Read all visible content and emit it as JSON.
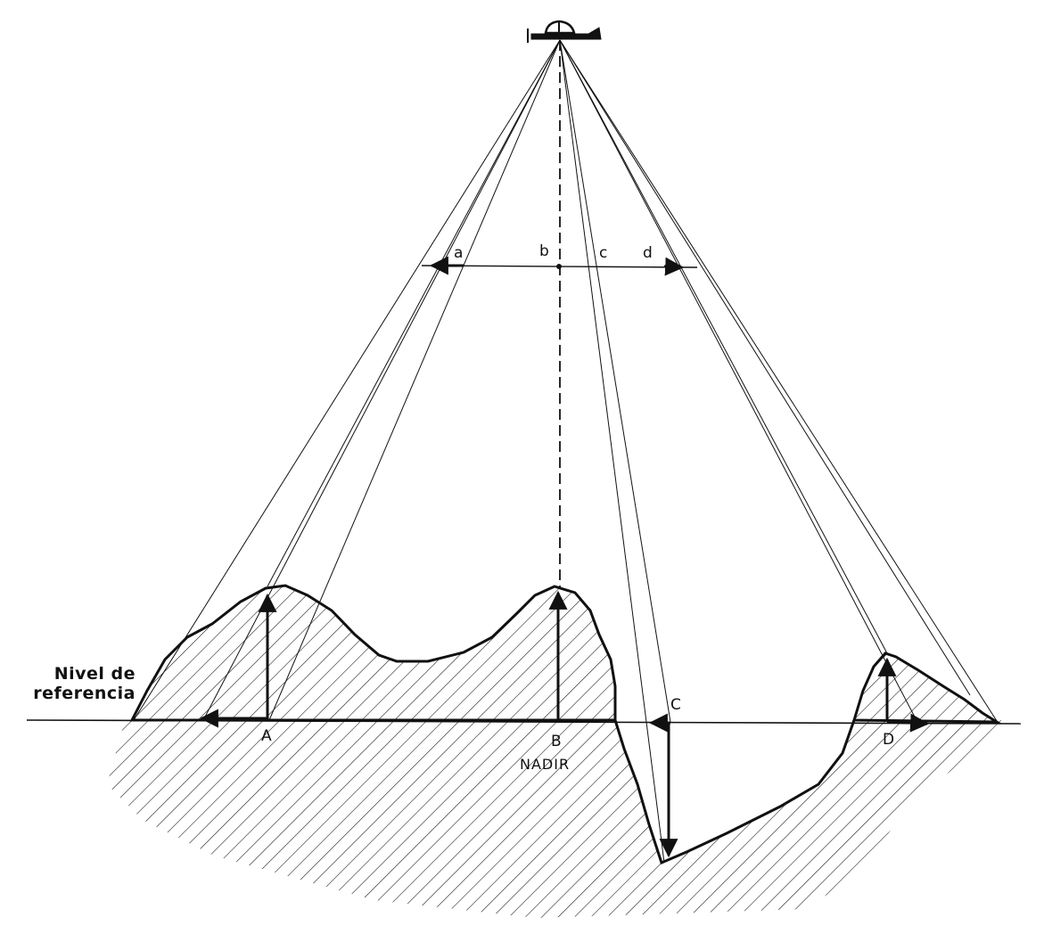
{
  "reference_label": {
    "line1": "Nivel de",
    "line2": "referencia"
  },
  "image_points": {
    "a": "a",
    "b": "b",
    "c": "c",
    "d": "d"
  },
  "ground_points": {
    "A": "A",
    "B": "B",
    "C": "C",
    "D": "D"
  },
  "nadir_label": "NADIR",
  "colors": {
    "ink": "#111111",
    "background": "#ffffff"
  }
}
